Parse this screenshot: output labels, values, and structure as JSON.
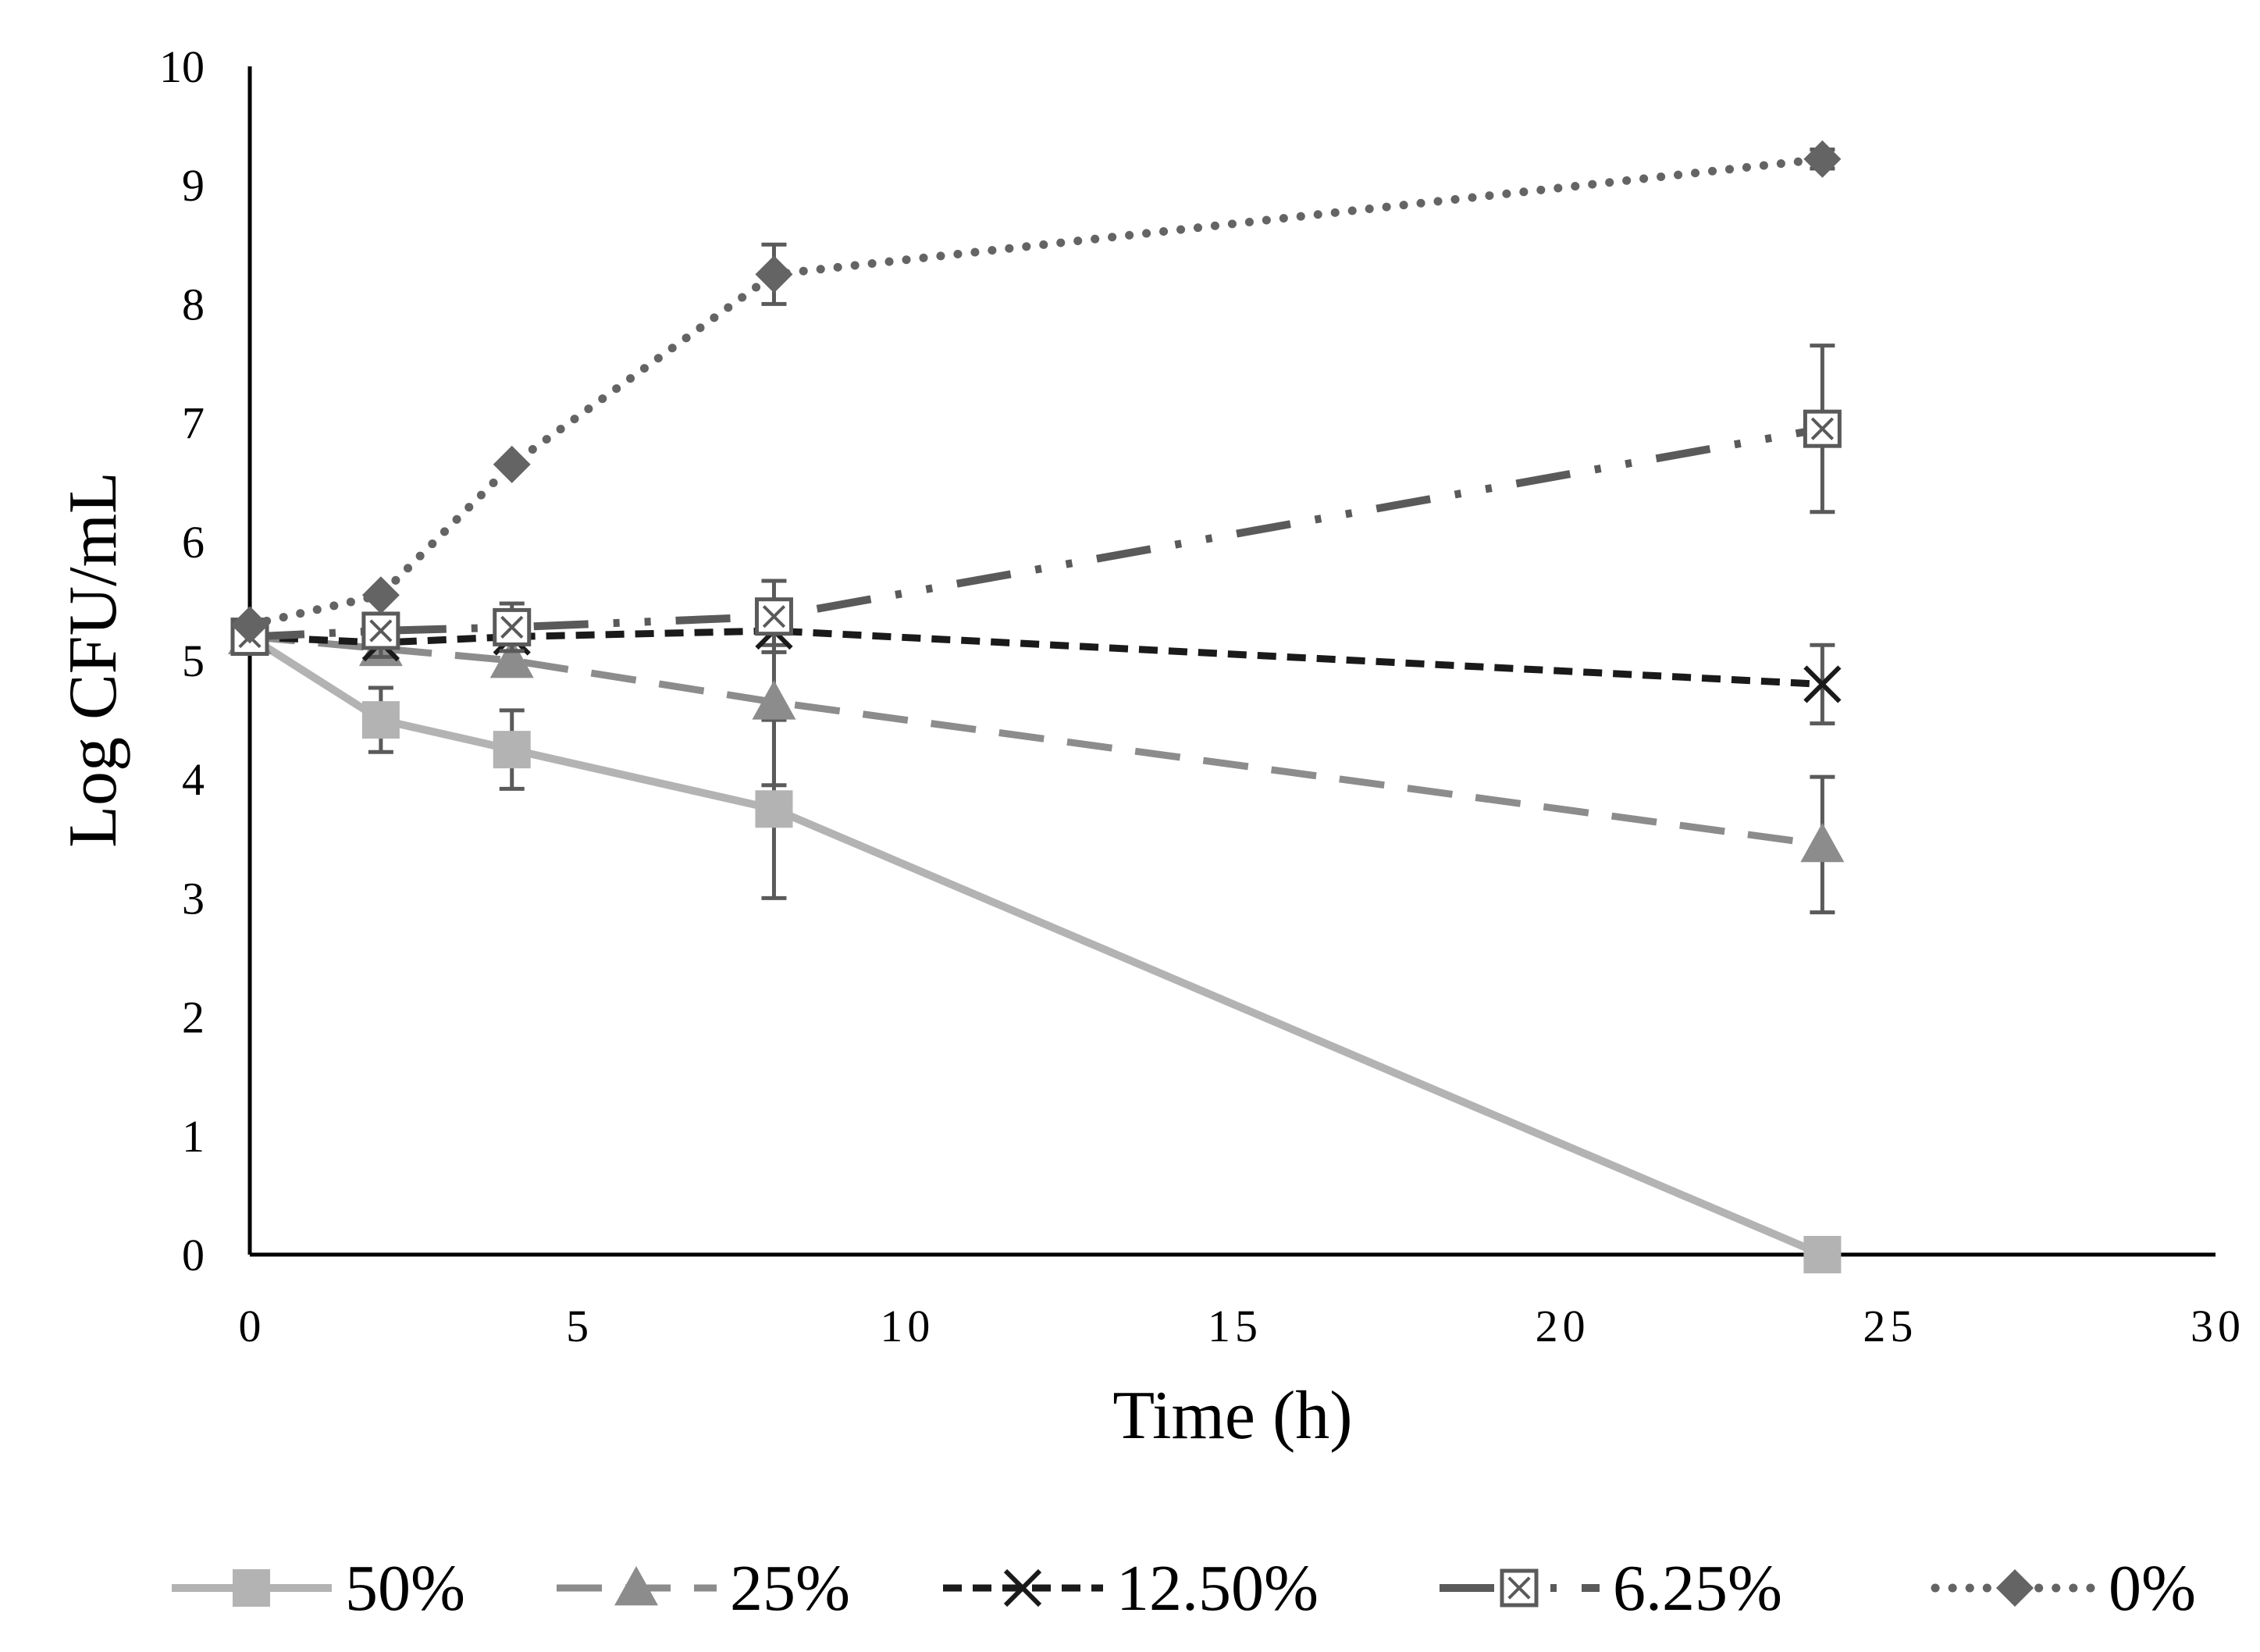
{
  "chart_data": {
    "type": "line",
    "title": "",
    "xlabel": "Time (h)",
    "ylabel": "Log CFU/mL",
    "xlim": [
      0,
      30
    ],
    "ylim": [
      0,
      10
    ],
    "x_ticks": [
      "0",
      "5",
      "10",
      "15",
      "20",
      "25",
      "30"
    ],
    "y_ticks": [
      "0",
      "1",
      "2",
      "3",
      "4",
      "5",
      "6",
      "7",
      "8",
      "9",
      "10"
    ],
    "grid": false,
    "legend_position": "bottom",
    "x": [
      0,
      2,
      4,
      8,
      24
    ],
    "series": [
      {
        "name": "50%",
        "values": [
          5.2,
          4.5,
          4.25,
          3.75,
          0
        ],
        "errors": [
          0,
          0.27,
          0.33,
          0.75,
          0
        ],
        "marker": "square",
        "line": "solid",
        "color": "#b3b3b3"
      },
      {
        "name": "25%",
        "values": [
          5.2,
          5.1,
          5.0,
          4.65,
          3.45
        ],
        "errors": [
          0,
          0,
          0,
          0.7,
          0.57
        ],
        "marker": "triangle",
        "line": "long-dash",
        "color": "#8c8c8c"
      },
      {
        "name": "12.50%",
        "values": [
          5.2,
          5.15,
          5.2,
          5.25,
          4.8
        ],
        "errors": [
          0,
          0.12,
          0,
          0.12,
          0.33
        ],
        "marker": "x",
        "line": "short-dash",
        "color": "#1a1a1a"
      },
      {
        "name": "6.25%",
        "values": [
          5.2,
          5.25,
          5.28,
          5.37,
          6.95
        ],
        "errors": [
          0,
          0.12,
          0.2,
          0.3,
          0.7
        ],
        "marker": "boxed-x",
        "line": "long-dash-dot-dot",
        "color": "#5a5a5a"
      },
      {
        "name": "0%",
        "values": [
          5.3,
          5.55,
          6.65,
          8.25,
          9.22
        ],
        "errors": [
          0,
          0,
          0,
          0.25,
          0.08
        ],
        "marker": "diamond",
        "line": "dotted",
        "color": "#646464"
      }
    ]
  }
}
